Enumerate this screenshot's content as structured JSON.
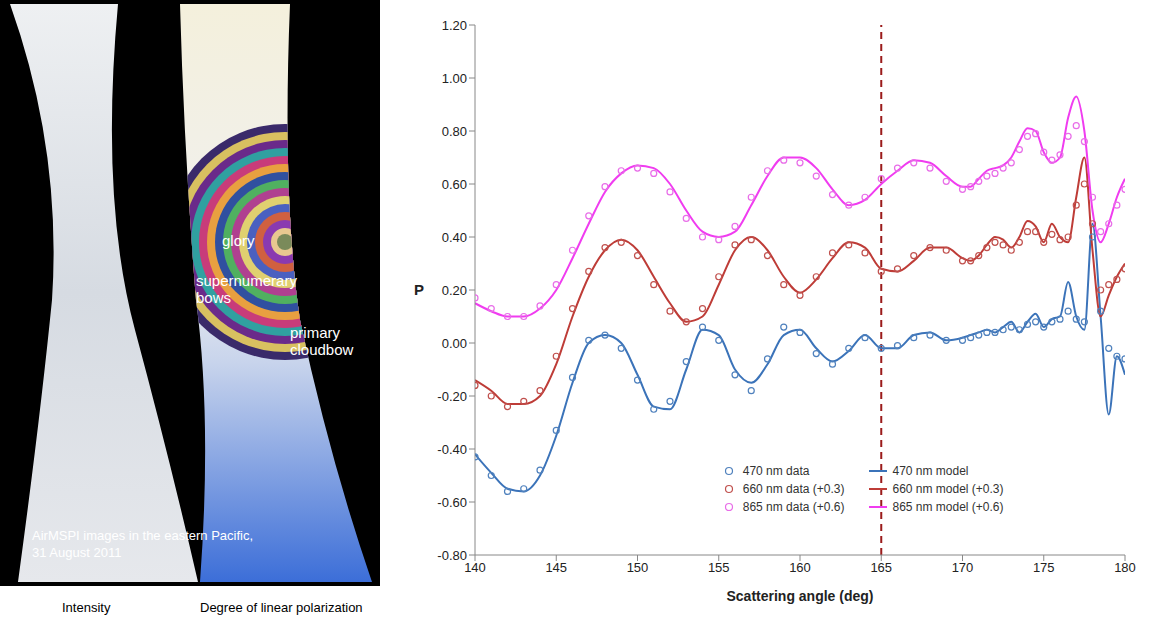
{
  "images": {
    "caption": [
      "AirMSPI images in the eastern Pacific,",
      "31 August 2011"
    ],
    "left_title": "Intensity",
    "right_title": "Degree of linear polarization",
    "glory": "glory",
    "supernumerary": [
      "supernumerary",
      "bows"
    ],
    "cloudbow": [
      "primary",
      "cloudbow"
    ]
  },
  "chart_data": {
    "type": "line",
    "x_label": "Scattering angle (deg)",
    "y_label": "P",
    "xlim": [
      140,
      180
    ],
    "xticks": [
      140,
      145,
      150,
      155,
      160,
      165,
      170,
      175,
      180
    ],
    "ylim": [
      -0.8,
      1.2
    ],
    "yticks": [
      {
        "value": -0.8,
        "label": "-0.80"
      },
      {
        "value": -0.6,
        "label": "-0.60"
      },
      {
        "value": -0.4,
        "label": "-0.40"
      },
      {
        "value": -0.2,
        "label": "-0.20"
      },
      {
        "value": 0,
        "label": "0.00"
      },
      {
        "value": 0.2,
        "label": "0.20"
      },
      {
        "value": 0.4,
        "label": "0.40"
      },
      {
        "value": 0.6,
        "label": "0.60"
      },
      {
        "value": 0.8,
        "label": "0.80"
      },
      {
        "value": 1.0,
        "label": "1.00"
      },
      {
        "value": 1.2,
        "label": "1.20"
      }
    ],
    "grid": false,
    "legend": "lower center",
    "vline": 165,
    "x": [
      140,
      141,
      142,
      143,
      144,
      145,
      146,
      147,
      148,
      149,
      150,
      151,
      152,
      153,
      154,
      155,
      156,
      157,
      158,
      159,
      160,
      161,
      162,
      163,
      164,
      165,
      166,
      167,
      168,
      169,
      170,
      170.5,
      171,
      171.5,
      172,
      172.5,
      173,
      173.5,
      174,
      174.5,
      175,
      175.5,
      176,
      176.5,
      177,
      177.5,
      178,
      178.5,
      179,
      179.5,
      180
    ],
    "series": [
      {
        "name": "470 nm data",
        "type": "scatter",
        "marker": "circle",
        "color": "#4f81bd",
        "values": [
          -0.43,
          -0.5,
          -0.56,
          -0.55,
          -0.48,
          -0.33,
          -0.13,
          0.01,
          0.03,
          -0.02,
          -0.14,
          -0.25,
          -0.22,
          -0.07,
          0.06,
          0.01,
          -0.12,
          -0.18,
          -0.06,
          0.06,
          0.04,
          -0.04,
          -0.08,
          -0.02,
          0.02,
          -0.02,
          -0.01,
          0.02,
          0.03,
          0.01,
          0.01,
          0.02,
          0.03,
          0.04,
          0.04,
          0.05,
          0.06,
          0.05,
          0.07,
          0.08,
          0.06,
          0.08,
          0.09,
          0.12,
          0.09,
          0.08,
          0.4,
          0.12,
          -0.02,
          -0.05,
          -0.06
        ]
      },
      {
        "name": "660 nm data (+0.3)",
        "type": "scatter",
        "marker": "circle",
        "color": "#c0504d",
        "values": [
          -0.16,
          -0.2,
          -0.24,
          -0.22,
          -0.18,
          -0.05,
          0.13,
          0.27,
          0.36,
          0.38,
          0.33,
          0.22,
          0.12,
          0.08,
          0.13,
          0.25,
          0.37,
          0.39,
          0.33,
          0.22,
          0.18,
          0.25,
          0.34,
          0.37,
          0.34,
          0.27,
          0.28,
          0.33,
          0.36,
          0.35,
          0.31,
          0.31,
          0.33,
          0.36,
          0.38,
          0.37,
          0.35,
          0.38,
          0.42,
          0.42,
          0.38,
          0.41,
          0.39,
          0.4,
          0.52,
          0.6,
          0.45,
          0.2,
          0.22,
          0.24,
          0.28
        ]
      },
      {
        "name": "865 nm data (+0.6)",
        "type": "scatter",
        "marker": "circle",
        "color": "#e86de8",
        "values": [
          0.17,
          0.13,
          0.1,
          0.1,
          0.14,
          0.22,
          0.35,
          0.48,
          0.59,
          0.65,
          0.66,
          0.64,
          0.57,
          0.47,
          0.4,
          0.39,
          0.44,
          0.55,
          0.65,
          0.69,
          0.68,
          0.63,
          0.56,
          0.52,
          0.55,
          0.62,
          0.66,
          0.68,
          0.66,
          0.61,
          0.58,
          0.59,
          0.61,
          0.63,
          0.64,
          0.66,
          0.68,
          0.73,
          0.78,
          0.79,
          0.72,
          0.69,
          0.71,
          0.78,
          0.82,
          0.76,
          0.55,
          0.42,
          0.45,
          0.52,
          0.58
        ]
      },
      {
        "name": "470 nm model",
        "type": "line",
        "color": "#3b73b9",
        "values": [
          -0.42,
          -0.49,
          -0.55,
          -0.56,
          -0.5,
          -0.35,
          -0.15,
          0.0,
          0.03,
          0.0,
          -0.12,
          -0.24,
          -0.25,
          -0.1,
          0.05,
          0.03,
          -0.1,
          -0.15,
          -0.08,
          0.03,
          0.05,
          -0.02,
          -0.07,
          -0.03,
          0.03,
          -0.02,
          -0.02,
          0.03,
          0.04,
          0.01,
          0.02,
          0.03,
          0.04,
          0.05,
          0.04,
          0.06,
          0.08,
          0.04,
          0.08,
          0.11,
          0.06,
          0.09,
          0.1,
          0.23,
          0.1,
          0.05,
          0.45,
          0.1,
          -0.27,
          -0.05,
          -0.12
        ]
      },
      {
        "name": "660 nm model (+0.3)",
        "type": "line",
        "color": "#be3c37",
        "values": [
          -0.14,
          -0.18,
          -0.23,
          -0.23,
          -0.2,
          -0.08,
          0.1,
          0.25,
          0.35,
          0.39,
          0.35,
          0.25,
          0.15,
          0.08,
          0.1,
          0.22,
          0.35,
          0.4,
          0.35,
          0.25,
          0.19,
          0.24,
          0.32,
          0.38,
          0.36,
          0.28,
          0.27,
          0.31,
          0.36,
          0.36,
          0.32,
          0.31,
          0.33,
          0.37,
          0.4,
          0.39,
          0.36,
          0.4,
          0.46,
          0.44,
          0.38,
          0.45,
          0.4,
          0.38,
          0.55,
          0.7,
          0.35,
          0.1,
          0.18,
          0.25,
          0.3
        ]
      },
      {
        "name": "865 nm model (+0.6)",
        "type": "line",
        "color": "#f03cf0",
        "values": [
          0.15,
          0.12,
          0.1,
          0.1,
          0.13,
          0.2,
          0.32,
          0.45,
          0.57,
          0.64,
          0.67,
          0.66,
          0.6,
          0.5,
          0.42,
          0.4,
          0.42,
          0.52,
          0.63,
          0.7,
          0.7,
          0.66,
          0.58,
          0.52,
          0.54,
          0.6,
          0.65,
          0.69,
          0.68,
          0.63,
          0.59,
          0.59,
          0.62,
          0.65,
          0.66,
          0.67,
          0.7,
          0.76,
          0.81,
          0.8,
          0.72,
          0.68,
          0.7,
          0.85,
          0.93,
          0.8,
          0.5,
          0.38,
          0.45,
          0.55,
          0.62
        ]
      }
    ]
  }
}
